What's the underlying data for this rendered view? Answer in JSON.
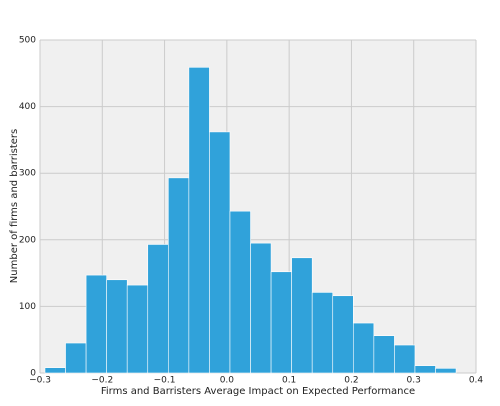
{
  "chart_data": {
    "type": "histogram",
    "xlabel": "Firms and Barristers Average Impact on Expected Performance",
    "ylabel": "Number of firms and barristers",
    "bins": [
      -0.292,
      -0.259,
      -0.226,
      -0.193,
      -0.16,
      -0.127,
      -0.094,
      -0.061,
      -0.028,
      0.005,
      0.038,
      0.071,
      0.104,
      0.137,
      0.17,
      0.203,
      0.236,
      0.269,
      0.302,
      0.335,
      0.368
    ],
    "values": [
      8,
      45,
      147,
      140,
      132,
      193,
      293,
      459,
      362,
      243,
      195,
      152,
      173,
      121,
      116,
      75,
      56,
      42,
      11,
      7
    ],
    "color": "#30a2da",
    "xlim": [
      -0.3,
      0.4
    ],
    "xticks": [
      {
        "value": -0.3,
        "label": "−0.3"
      },
      {
        "value": -0.2,
        "label": "−0.2"
      },
      {
        "value": -0.1,
        "label": "−0.1"
      },
      {
        "value": 0,
        "label": "0.0"
      },
      0.1,
      0.2,
      0.3,
      0.4
    ],
    "ylim": [
      0,
      500
    ],
    "yticks": [
      0,
      100,
      200,
      300,
      400,
      500
    ],
    "grid": true
  }
}
